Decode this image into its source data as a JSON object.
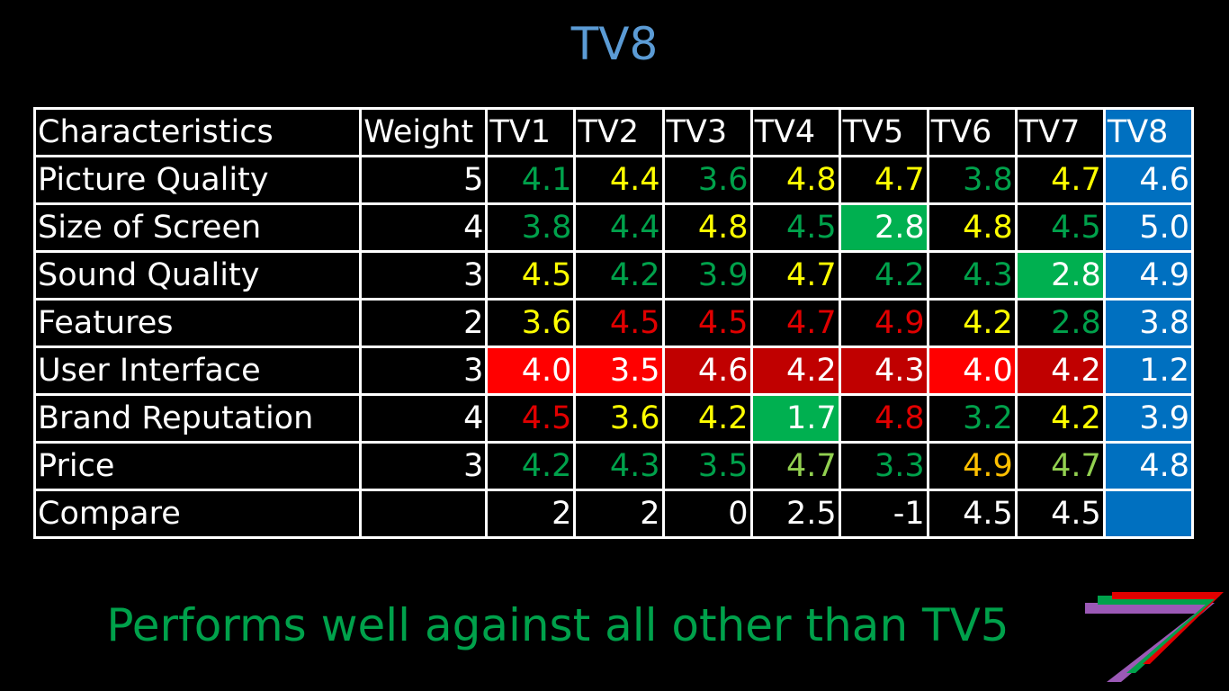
{
  "title": "TV8",
  "table": {
    "headers": [
      "Characteristics",
      "Weight",
      "TV1",
      "TV2",
      "TV3",
      "TV4",
      "TV5",
      "TV6",
      "TV7",
      "TV8"
    ],
    "rows": [
      {
        "label": "Picture Quality",
        "weight": "5",
        "values": [
          "4.1",
          "4.4",
          "3.6",
          "4.8",
          "4.7",
          "3.8",
          "4.7",
          "4.6"
        ]
      },
      {
        "label": "Size of Screen",
        "weight": "4",
        "values": [
          "3.8",
          "4.4",
          "4.8",
          "4.5",
          "2.8",
          "4.8",
          "4.5",
          "5.0"
        ]
      },
      {
        "label": "Sound Quality",
        "weight": "3",
        "values": [
          "4.5",
          "4.2",
          "3.9",
          "4.7",
          "4.2",
          "4.3",
          "2.8",
          "4.9"
        ]
      },
      {
        "label": "Features",
        "weight": "2",
        "values": [
          "3.6",
          "4.5",
          "4.5",
          "4.7",
          "4.9",
          "4.2",
          "2.8",
          "3.8"
        ]
      },
      {
        "label": "User Interface",
        "weight": "3",
        "values": [
          "4.0",
          "3.5",
          "4.6",
          "4.2",
          "4.3",
          "4.0",
          "4.2",
          "1.2"
        ]
      },
      {
        "label": "Brand Reputation",
        "weight": "4",
        "values": [
          "4.5",
          "3.6",
          "4.2",
          "1.7",
          "4.8",
          "3.2",
          "4.2",
          "3.9"
        ]
      },
      {
        "label": "Price",
        "weight": "3",
        "values": [
          "4.2",
          "4.3",
          "3.5",
          "4.7",
          "3.3",
          "4.9",
          "4.7",
          "4.8"
        ]
      },
      {
        "label": "Compare",
        "weight": "",
        "values": [
          "2",
          "2",
          "0",
          "2.5",
          "-1",
          "4.5",
          "4.5",
          ""
        ]
      }
    ]
  },
  "footer": "Performs well against all other than TV5",
  "colors": {
    "title": "#5b9bd5",
    "tv8_column": "#0070c0",
    "green_text": "#00a14b",
    "yellow_text": "#ffff00",
    "red_text": "#e00000",
    "light_green_text": "#92d050",
    "orange_text": "#ffc000",
    "green_fill": "#00b050",
    "red_fill": "#ff0000",
    "dark_red_fill": "#c00000"
  },
  "logo": "logo-icon"
}
